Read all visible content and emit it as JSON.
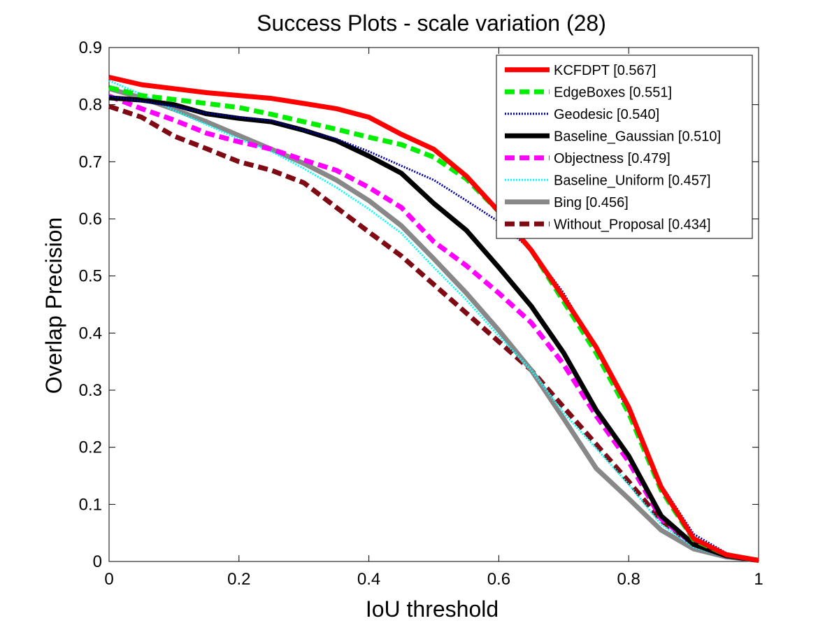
{
  "chart_data": {
    "type": "line",
    "title": "Success Plots - scale variation (28)",
    "xlabel": "IoU threshold",
    "ylabel": "Overlap Precision",
    "xlim": [
      0,
      1
    ],
    "ylim": [
      0,
      0.9
    ],
    "xticks": [
      "0",
      "0.2",
      "0.4",
      "0.6",
      "0.8",
      "1"
    ],
    "yticks": [
      "0",
      "0.1",
      "0.2",
      "0.3",
      "0.4",
      "0.5",
      "0.6",
      "0.7",
      "0.8",
      "0.9"
    ],
    "grid": false,
    "legend_position": "top-right",
    "x": [
      0,
      0.05,
      0.1,
      0.15,
      0.2,
      0.25,
      0.3,
      0.35,
      0.4,
      0.45,
      0.5,
      0.55,
      0.6,
      0.65,
      0.7,
      0.75,
      0.8,
      0.85,
      0.9,
      0.95,
      1.0
    ],
    "series": [
      {
        "name": "KCFDPT [0.567]",
        "color": "#ff0000",
        "dash": "solid",
        "values": [
          0.848,
          0.835,
          0.828,
          0.821,
          0.816,
          0.811,
          0.802,
          0.793,
          0.778,
          0.748,
          0.722,
          0.675,
          0.613,
          0.545,
          0.462,
          0.375,
          0.27,
          0.13,
          0.04,
          0.012,
          0.002
        ]
      },
      {
        "name": "EdgeBoxes [0.551]",
        "color": "#00ee00",
        "dash": "dash",
        "values": [
          0.83,
          0.816,
          0.809,
          0.802,
          0.795,
          0.783,
          0.77,
          0.757,
          0.743,
          0.73,
          0.708,
          0.67,
          0.613,
          0.545,
          0.455,
          0.365,
          0.26,
          0.125,
          0.038,
          0.012,
          0.002
        ]
      },
      {
        "name": "Geodesic [0.540]",
        "color": "#0000aa",
        "dash": "dot",
        "values": [
          0.815,
          0.806,
          0.797,
          0.785,
          0.778,
          0.772,
          0.755,
          0.74,
          0.718,
          0.693,
          0.668,
          0.632,
          0.595,
          0.545,
          0.47,
          0.372,
          0.262,
          0.135,
          0.048,
          0.015,
          0.002
        ]
      },
      {
        "name": "Baseline_Gaussian [0.510]",
        "color": "#000000",
        "dash": "solid",
        "values": [
          0.812,
          0.808,
          0.8,
          0.784,
          0.776,
          0.77,
          0.755,
          0.737,
          0.71,
          0.68,
          0.627,
          0.58,
          0.515,
          0.447,
          0.365,
          0.265,
          0.185,
          0.08,
          0.03,
          0.01,
          0.002
        ]
      },
      {
        "name": "Objectness [0.479]",
        "color": "#ff00ff",
        "dash": "dash",
        "values": [
          0.815,
          0.793,
          0.773,
          0.75,
          0.735,
          0.722,
          0.703,
          0.685,
          0.655,
          0.62,
          0.56,
          0.518,
          0.47,
          0.418,
          0.345,
          0.255,
          0.175,
          0.075,
          0.03,
          0.01,
          0.002
        ]
      },
      {
        "name": "Baseline_Uniform [0.457]",
        "color": "#00ffff",
        "dash": "dot",
        "values": [
          0.842,
          0.818,
          0.79,
          0.765,
          0.74,
          0.718,
          0.688,
          0.655,
          0.617,
          0.575,
          0.515,
          0.458,
          0.395,
          0.335,
          0.26,
          0.198,
          0.135,
          0.065,
          0.025,
          0.008,
          0.002
        ]
      },
      {
        "name": "Bing [0.456]",
        "color": "#888888",
        "dash": "solid",
        "values": [
          0.828,
          0.812,
          0.792,
          0.77,
          0.746,
          0.722,
          0.697,
          0.668,
          0.632,
          0.588,
          0.53,
          0.47,
          0.405,
          0.335,
          0.25,
          0.163,
          0.11,
          0.055,
          0.022,
          0.008,
          0.002
        ]
      },
      {
        "name": "Without_Proposal [0.434]",
        "color": "#7f0a14",
        "dash": "dash",
        "values": [
          0.797,
          0.778,
          0.745,
          0.723,
          0.7,
          0.685,
          0.663,
          0.62,
          0.577,
          0.535,
          0.485,
          0.435,
          0.385,
          0.335,
          0.27,
          0.205,
          0.14,
          0.072,
          0.028,
          0.01,
          0.002
        ]
      }
    ]
  }
}
